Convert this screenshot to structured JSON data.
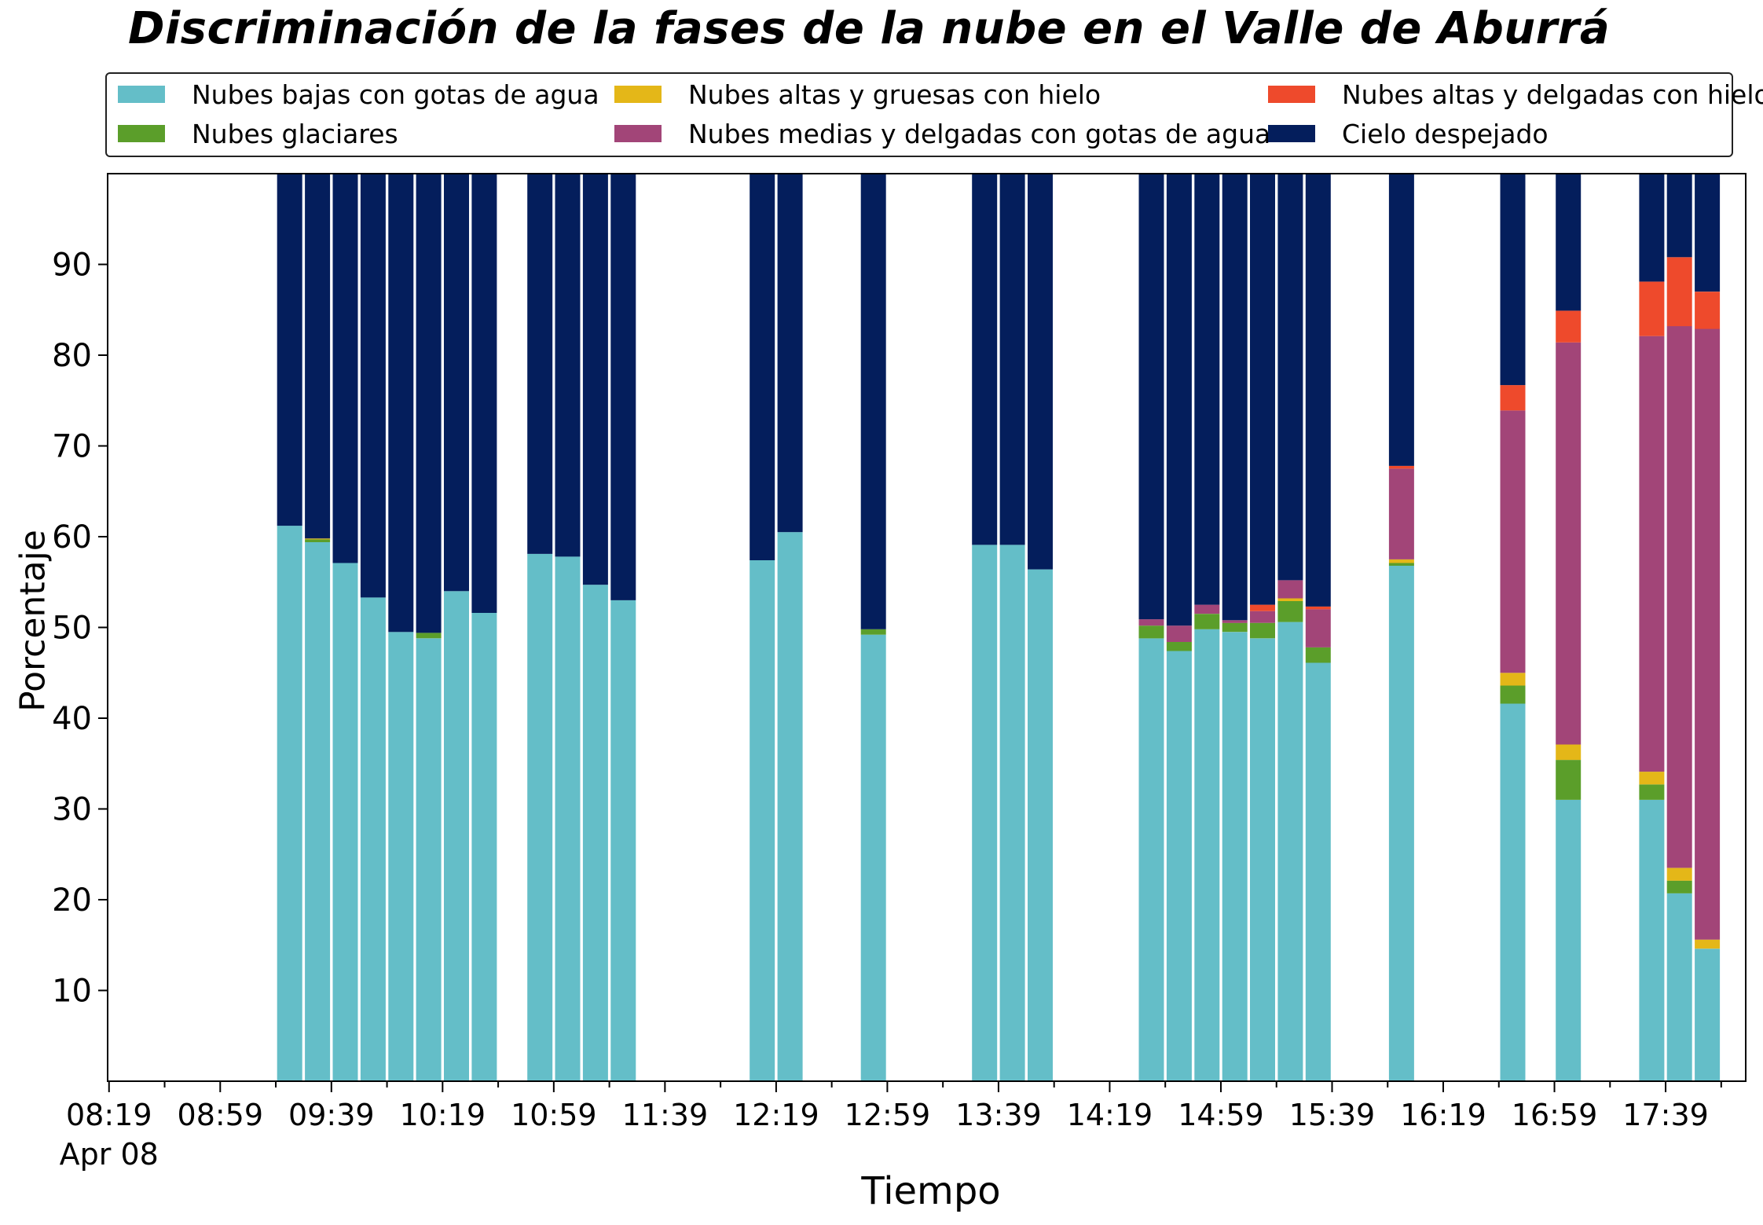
{
  "chart_data": {
    "type": "bar",
    "stacked": true,
    "title": "Discriminación de la fases de la nube en el Valle de Aburrá",
    "xlabel": "Tiempo",
    "ylabel": "Porcentaje",
    "ylim": [
      0,
      100
    ],
    "yticks": [
      10,
      20,
      30,
      40,
      50,
      60,
      70,
      80,
      90
    ],
    "xtick_labels": [
      "08:19",
      "08:59",
      "09:39",
      "10:19",
      "10:59",
      "11:39",
      "12:19",
      "12:59",
      "13:39",
      "14:19",
      "14:59",
      "15:39",
      "16:19",
      "16:59",
      "17:39"
    ],
    "date_label": "Apr 08",
    "legend_position": "top",
    "grid": false,
    "series": [
      {
        "name": "Nubes bajas con gotas de agua",
        "color": "#64bec8"
      },
      {
        "name": "Nubes glaciares",
        "color": "#5b9e2a"
      },
      {
        "name": "Nubes altas y gruesas con hielo",
        "color": "#e4b718"
      },
      {
        "name": "Nubes medias y delgadas con gotas de agua",
        "color": "#a24578"
      },
      {
        "name": "Nubes altas y delgadas con hielo",
        "color": "#ee4a2c"
      },
      {
        "name": "Cielo despejado",
        "color": "#041e5c"
      }
    ],
    "bars": [
      {
        "time": "09:24",
        "values": [
          61.2,
          0,
          0,
          0,
          0,
          38.8
        ]
      },
      {
        "time": "09:34",
        "values": [
          59.4,
          0.3,
          0.1,
          0,
          0,
          40.2
        ]
      },
      {
        "time": "09:44",
        "values": [
          57.1,
          0,
          0,
          0,
          0,
          42.9
        ]
      },
      {
        "time": "09:54",
        "values": [
          53.3,
          0,
          0,
          0,
          0,
          46.7
        ]
      },
      {
        "time": "10:04",
        "values": [
          49.5,
          0,
          0,
          0,
          0,
          50.5
        ]
      },
      {
        "time": "10:14",
        "values": [
          48.8,
          0.6,
          0,
          0,
          0,
          50.6
        ]
      },
      {
        "time": "10:24",
        "values": [
          54.0,
          0,
          0,
          0,
          0,
          46.0
        ]
      },
      {
        "time": "10:34",
        "values": [
          51.6,
          0,
          0,
          0,
          0,
          48.4
        ]
      },
      {
        "time": "10:54",
        "values": [
          58.1,
          0,
          0,
          0,
          0,
          41.9
        ]
      },
      {
        "time": "11:04",
        "values": [
          57.8,
          0,
          0,
          0,
          0,
          42.2
        ]
      },
      {
        "time": "11:14",
        "values": [
          54.7,
          0,
          0,
          0,
          0,
          45.3
        ]
      },
      {
        "time": "11:24",
        "values": [
          53.0,
          0,
          0,
          0,
          0,
          47.0
        ]
      },
      {
        "time": "12:14",
        "values": [
          57.4,
          0,
          0,
          0,
          0,
          42.6
        ]
      },
      {
        "time": "12:24",
        "values": [
          60.5,
          0,
          0,
          0,
          0,
          39.5
        ]
      },
      {
        "time": "12:54",
        "values": [
          49.2,
          0.6,
          0,
          0,
          0,
          50.2
        ]
      },
      {
        "time": "13:34",
        "values": [
          59.1,
          0,
          0,
          0,
          0,
          40.9
        ]
      },
      {
        "time": "13:44",
        "values": [
          59.1,
          0,
          0,
          0,
          0,
          40.9
        ]
      },
      {
        "time": "13:54",
        "values": [
          56.4,
          0,
          0,
          0,
          0,
          43.6
        ]
      },
      {
        "time": "14:34",
        "values": [
          48.8,
          1.4,
          0,
          0.7,
          0,
          49.1
        ]
      },
      {
        "time": "14:44",
        "values": [
          47.4,
          1.0,
          0,
          1.8,
          0,
          49.8
        ]
      },
      {
        "time": "14:54",
        "values": [
          49.8,
          1.7,
          0,
          1.0,
          0,
          47.5
        ]
      },
      {
        "time": "15:04",
        "values": [
          49.5,
          1.0,
          0,
          0.3,
          0,
          49.2
        ]
      },
      {
        "time": "15:14",
        "values": [
          48.8,
          1.7,
          0,
          1.3,
          0.7,
          47.5
        ]
      },
      {
        "time": "15:24",
        "values": [
          50.6,
          2.3,
          0.3,
          2.0,
          0,
          44.8
        ]
      },
      {
        "time": "15:34",
        "values": [
          46.1,
          1.7,
          0,
          4.2,
          0.3,
          47.7
        ]
      },
      {
        "time": "16:04",
        "values": [
          56.8,
          0.3,
          0.4,
          10.0,
          0.3,
          32.2
        ]
      },
      {
        "time": "16:44",
        "values": [
          41.6,
          2.0,
          1.4,
          28.9,
          2.8,
          23.3
        ]
      },
      {
        "time": "17:04",
        "values": [
          31.0,
          4.4,
          1.7,
          44.3,
          3.5,
          15.1
        ]
      },
      {
        "time": "17:34",
        "values": [
          31.0,
          1.7,
          1.4,
          48.0,
          6.0,
          11.9
        ]
      },
      {
        "time": "17:44",
        "values": [
          20.7,
          1.4,
          1.4,
          59.7,
          7.6,
          9.2
        ]
      },
      {
        "time": "17:54",
        "values": [
          14.6,
          0,
          1.0,
          67.3,
          4.1,
          13.0
        ]
      }
    ]
  }
}
